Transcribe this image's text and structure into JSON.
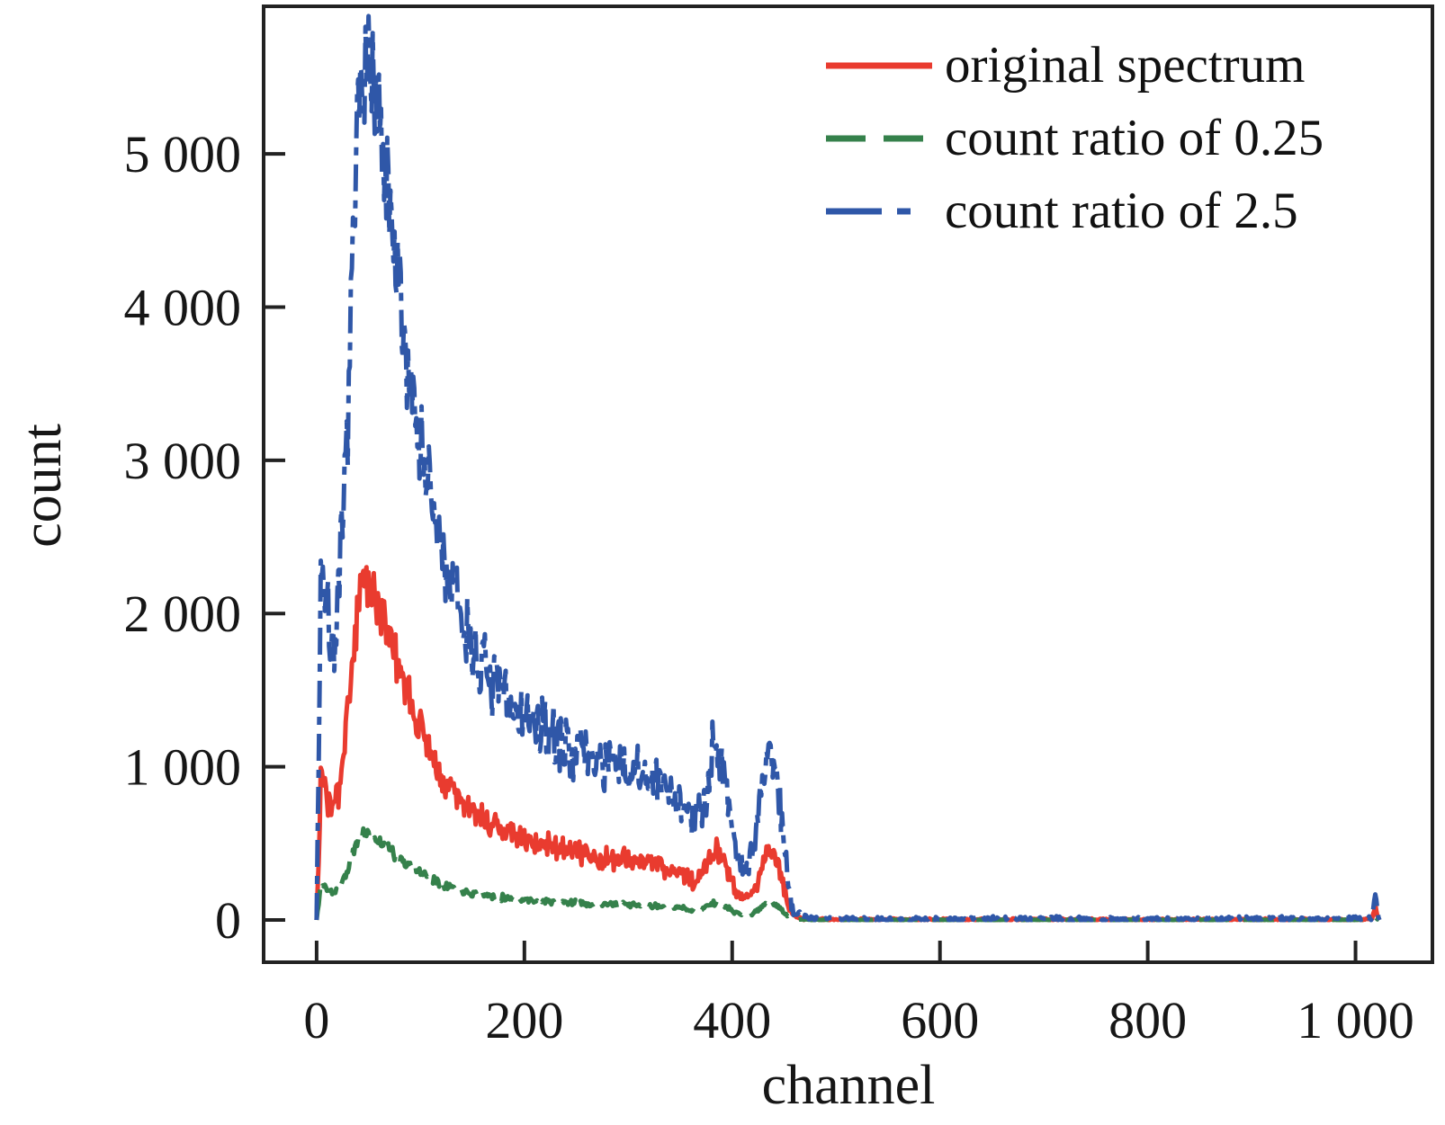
{
  "figure": {
    "background": "#ffffff",
    "text_color": "#161616",
    "axis_color": "#222222"
  },
  "chart_data": {
    "type": "line",
    "title": "",
    "xlabel": "channel",
    "ylabel": "count",
    "xlim": [
      -51,
      1074
    ],
    "ylim": [
      -276,
      5963
    ],
    "grid": false,
    "legend_position": "upper right",
    "x_ticks": [
      {
        "value": 0,
        "label": "0"
      },
      {
        "value": 200,
        "label": "200"
      },
      {
        "value": 400,
        "label": "400"
      },
      {
        "value": 600,
        "label": "600"
      },
      {
        "value": 800,
        "label": "800"
      },
      {
        "value": 1000,
        "label": "1 000"
      }
    ],
    "y_ticks": [
      {
        "value": 0,
        "label": "0"
      },
      {
        "value": 1000,
        "label": "1 000"
      },
      {
        "value": 2000,
        "label": "2 000"
      },
      {
        "value": 3000,
        "label": "3 000"
      },
      {
        "value": 4000,
        "label": "4 000"
      },
      {
        "value": 5000,
        "label": "5 000"
      }
    ],
    "series": [
      {
        "name": "original spectrum",
        "color": "#e93b2f",
        "linestyle": "solid",
        "count_ratio": 1.0,
        "seed": 3
      },
      {
        "name": "count ratio of 0.25",
        "color": "#35814b",
        "linestyle": "dashed",
        "count_ratio": 0.25,
        "seed": 11
      },
      {
        "name": "count ratio of 2.5",
        "color": "#2f57a8",
        "linestyle": "dashdot",
        "count_ratio": 2.5,
        "seed": 7
      }
    ],
    "noise_coeff": 1.8,
    "channel_range": [
      0,
      1023
    ],
    "base_spectrum": [
      [
        0,
        0
      ],
      [
        2,
        420
      ],
      [
        4,
        940
      ],
      [
        6,
        920
      ],
      [
        9,
        830
      ],
      [
        12,
        760
      ],
      [
        15,
        725
      ],
      [
        18,
        740
      ],
      [
        21,
        820
      ],
      [
        24,
        960
      ],
      [
        27,
        1120
      ],
      [
        30,
        1310
      ],
      [
        33,
        1560
      ],
      [
        36,
        1800
      ],
      [
        39,
        2010
      ],
      [
        42,
        2170
      ],
      [
        45,
        2280
      ],
      [
        48,
        2250
      ],
      [
        51,
        2210
      ],
      [
        54,
        2160
      ],
      [
        57,
        2100
      ],
      [
        60,
        2060
      ],
      [
        64,
        1970
      ],
      [
        68,
        1880
      ],
      [
        72,
        1790
      ],
      [
        76,
        1700
      ],
      [
        80,
        1610
      ],
      [
        85,
        1500
      ],
      [
        90,
        1420
      ],
      [
        95,
        1330
      ],
      [
        100,
        1250
      ],
      [
        108,
        1120
      ],
      [
        116,
        1010
      ],
      [
        124,
        920
      ],
      [
        132,
        845
      ],
      [
        140,
        780
      ],
      [
        150,
        710
      ],
      [
        160,
        658
      ],
      [
        170,
        616
      ],
      [
        180,
        582
      ],
      [
        190,
        553
      ],
      [
        200,
        528
      ],
      [
        212,
        503
      ],
      [
        224,
        482
      ],
      [
        236,
        463
      ],
      [
        248,
        447
      ],
      [
        260,
        432
      ],
      [
        272,
        418
      ],
      [
        284,
        405
      ],
      [
        296,
        392
      ],
      [
        308,
        379
      ],
      [
        320,
        365
      ],
      [
        330,
        351
      ],
      [
        340,
        334
      ],
      [
        348,
        316
      ],
      [
        354,
        295
      ],
      [
        360,
        268
      ],
      [
        364,
        258
      ],
      [
        368,
        268
      ],
      [
        372,
        305
      ],
      [
        376,
        360
      ],
      [
        380,
        425
      ],
      [
        383,
        455
      ],
      [
        386,
        462
      ],
      [
        389,
        440
      ],
      [
        392,
        400
      ],
      [
        395,
        345
      ],
      [
        398,
        280
      ],
      [
        401,
        220
      ],
      [
        404,
        180
      ],
      [
        408,
        152
      ],
      [
        412,
        143
      ],
      [
        416,
        150
      ],
      [
        420,
        180
      ],
      [
        424,
        240
      ],
      [
        427,
        310
      ],
      [
        430,
        380
      ],
      [
        433,
        430
      ],
      [
        436,
        448
      ],
      [
        439,
        430
      ],
      [
        442,
        390
      ],
      [
        445,
        330
      ],
      [
        448,
        250
      ],
      [
        451,
        170
      ],
      [
        454,
        100
      ],
      [
        457,
        55
      ],
      [
        460,
        28
      ],
      [
        464,
        14
      ],
      [
        468,
        9
      ],
      [
        475,
        6
      ],
      [
        485,
        4
      ],
      [
        500,
        3
      ],
      [
        550,
        3
      ],
      [
        600,
        3
      ],
      [
        700,
        3
      ],
      [
        800,
        3
      ],
      [
        900,
        3
      ],
      [
        980,
        3
      ],
      [
        1005,
        3
      ],
      [
        1012,
        4
      ],
      [
        1016,
        10
      ],
      [
        1018,
        55
      ],
      [
        1019,
        85
      ],
      [
        1020,
        70
      ],
      [
        1021,
        30
      ],
      [
        1022,
        8
      ],
      [
        1023,
        0
      ]
    ]
  }
}
